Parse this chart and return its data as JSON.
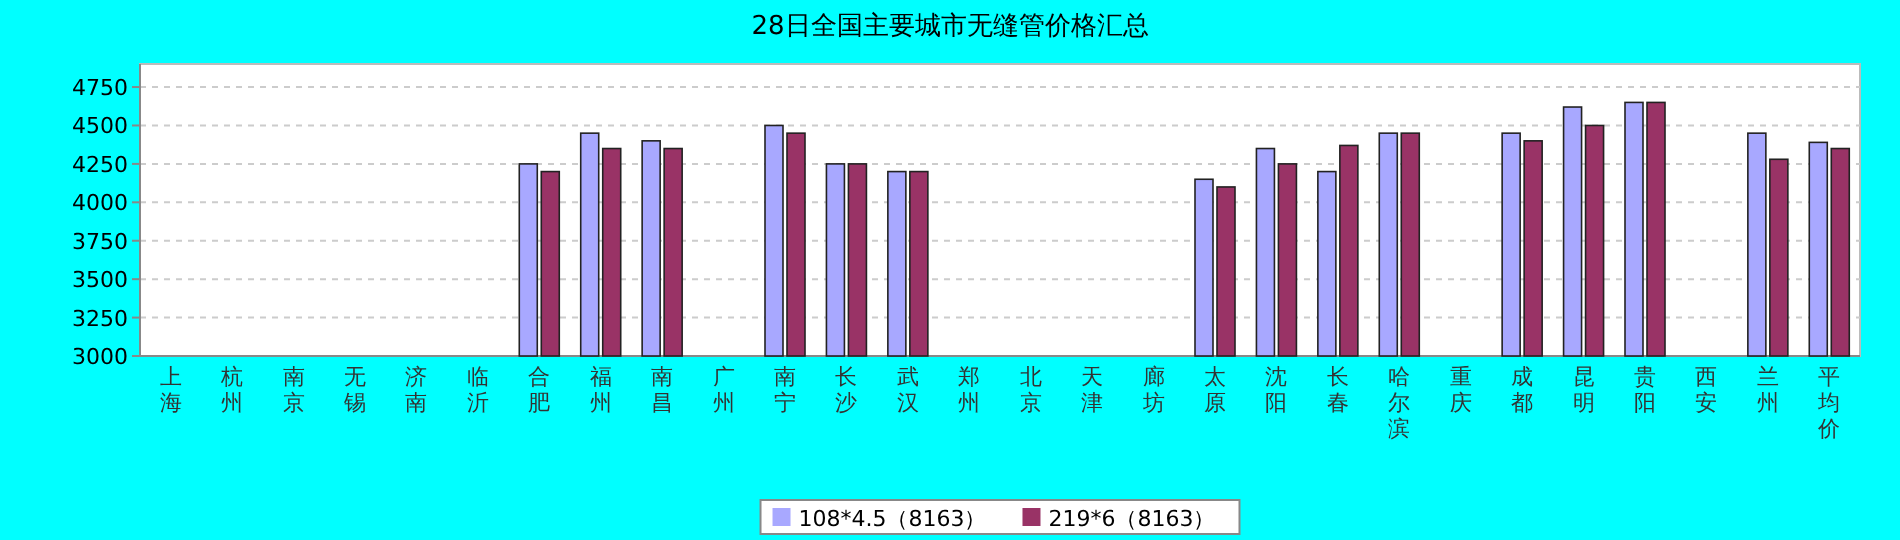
{
  "chart_data": {
    "type": "bar",
    "title": "28日全国主要城市无缝管价格汇总",
    "categories": [
      "上海",
      "杭州",
      "南京",
      "无锡",
      "济南",
      "临沂",
      "合肥",
      "福州",
      "南昌",
      "广州",
      "南宁",
      "长沙",
      "武汉",
      "郑州",
      "北京",
      "天津",
      "廊坊",
      "太原",
      "沈阳",
      "长春",
      "哈尔滨",
      "重庆",
      "成都",
      "昆明",
      "贵阳",
      "西安",
      "兰州",
      "平均价"
    ],
    "series": [
      {
        "name": "108*4.5（8163）",
        "color": "#a8a8ff",
        "values": [
          null,
          null,
          null,
          null,
          null,
          null,
          4250,
          4450,
          4400,
          null,
          4500,
          4250,
          4200,
          null,
          null,
          null,
          null,
          4150,
          4350,
          4200,
          4450,
          null,
          4450,
          4620,
          4650,
          null,
          4450,
          4390
        ]
      },
      {
        "name": "219*6（8163）",
        "color": "#993366",
        "values": [
          null,
          null,
          null,
          null,
          null,
          null,
          4200,
          4350,
          4350,
          null,
          4450,
          4250,
          4200,
          null,
          null,
          null,
          null,
          4100,
          4250,
          4370,
          4450,
          null,
          4400,
          4500,
          4650,
          null,
          4280,
          4350
        ]
      }
    ],
    "ylim": [
      3000,
      4900
    ],
    "yticks": [
      3000,
      3250,
      3500,
      3750,
      4000,
      4250,
      4500,
      4750
    ],
    "grid": "y",
    "legend": "bottom"
  }
}
